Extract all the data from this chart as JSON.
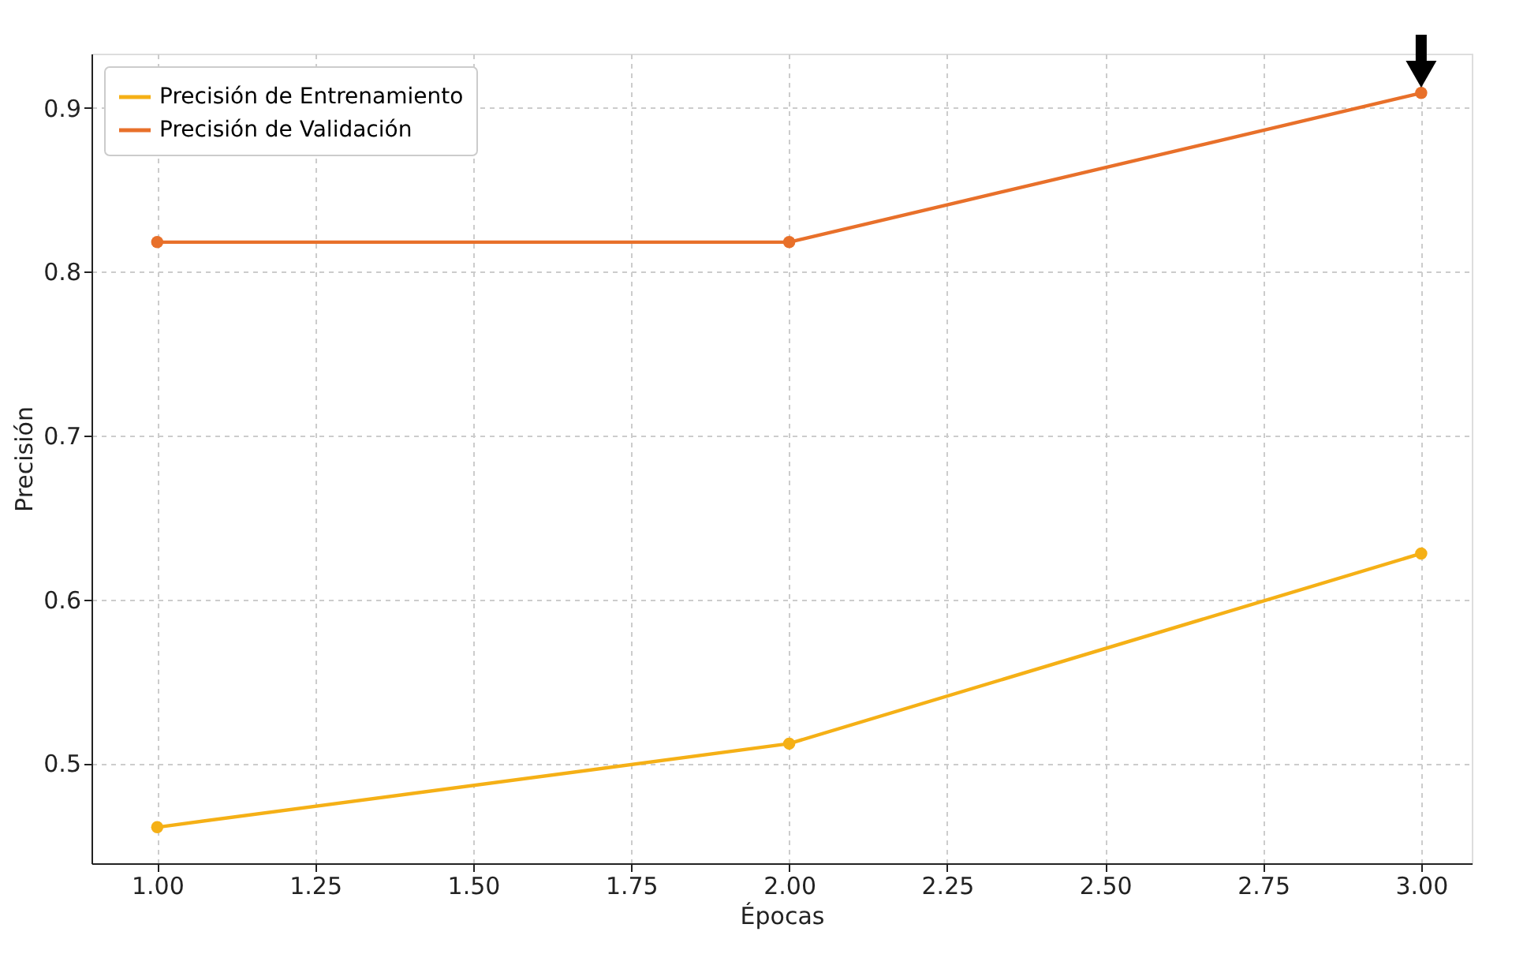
{
  "chart_data": {
    "type": "line",
    "xlabel": "Épocas",
    "ylabel": "Precisión",
    "x": [
      1,
      2,
      3
    ],
    "series": [
      {
        "name": "Precisión de Entrenamiento",
        "color": "#f5b016",
        "values": [
          0.461,
          0.512,
          0.628
        ]
      },
      {
        "name": "Precisión de Validación",
        "color": "#e8702a",
        "values": [
          0.818,
          0.818,
          0.909
        ]
      }
    ],
    "xlim": [
      0.896,
      3.08
    ],
    "xticks": [
      {
        "value": 1,
        "label": "1.00"
      },
      {
        "value": 1.25,
        "label": "1.25"
      },
      {
        "value": 1.5,
        "label": "1.50"
      },
      {
        "value": 1.75,
        "label": "1.75"
      },
      {
        "value": 2,
        "label": "2.00"
      },
      {
        "value": 2.25,
        "label": "2.25"
      },
      {
        "value": 2.5,
        "label": "2.50"
      },
      {
        "value": 2.75,
        "label": "2.75"
      },
      {
        "value": 3,
        "label": "3.00"
      }
    ],
    "ylim": [
      0.439,
      0.933
    ],
    "yticks": [
      0.5,
      0.6,
      0.7,
      0.8,
      0.9
    ],
    "grid": true,
    "legend": "top left",
    "marker": "circle",
    "line_style": "solid"
  }
}
